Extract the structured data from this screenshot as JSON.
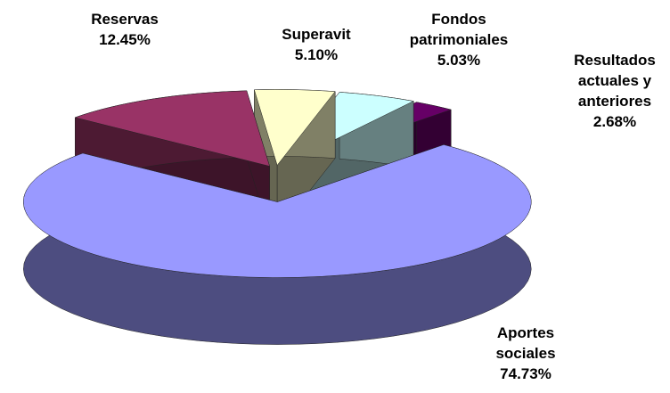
{
  "chart_data": {
    "type": "pie",
    "categories": [
      "Reservas",
      "Superavit",
      "Fondos patrimoniales",
      "Resultados actuales y anteriores",
      "Aportes sociales"
    ],
    "values": [
      12.45,
      5.1,
      5.03,
      2.68,
      74.73
    ],
    "value_labels": [
      "12.45%",
      "5.10%",
      "5.03%",
      "2.68%",
      "74.73%"
    ],
    "colors": [
      "#993366",
      "#ffffcc",
      "#ccffff",
      "#660066",
      "#9999ff"
    ]
  }
}
